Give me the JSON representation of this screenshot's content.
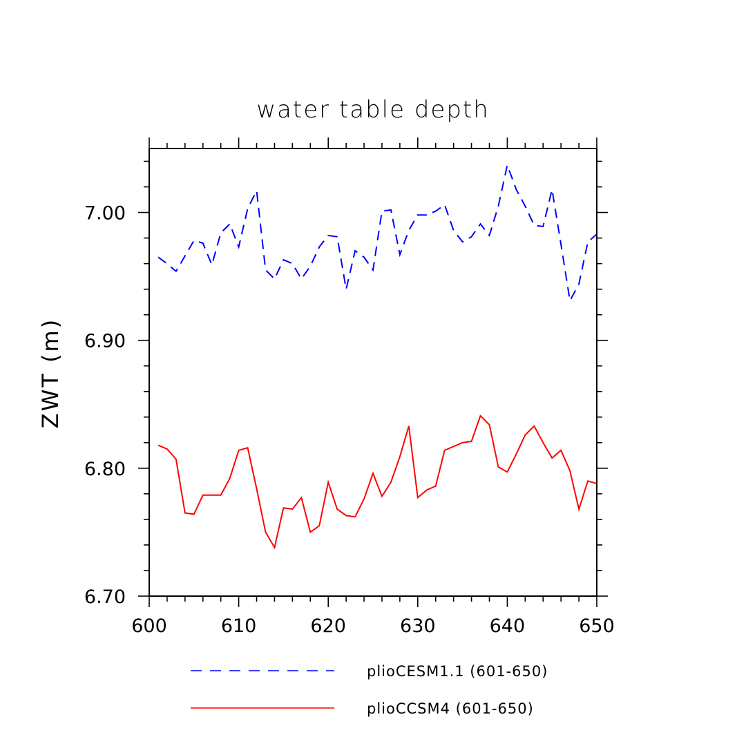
{
  "chart_data": {
    "type": "line",
    "title": "water table depth",
    "xlabel": "",
    "ylabel": "ZWT  (m)",
    "xlim": [
      600,
      650
    ],
    "ylim": [
      6.7,
      7.05
    ],
    "xticks": [
      "600",
      "610",
      "620",
      "630",
      "640",
      "650"
    ],
    "yticks": [
      "6.70",
      "6.80",
      "6.90",
      "7.00"
    ],
    "x": [
      601,
      602,
      603,
      604,
      605,
      606,
      607,
      608,
      609,
      610,
      611,
      612,
      613,
      614,
      615,
      616,
      617,
      618,
      619,
      620,
      621,
      622,
      623,
      624,
      625,
      626,
      627,
      628,
      629,
      630,
      631,
      632,
      633,
      634,
      635,
      636,
      637,
      638,
      639,
      640,
      641,
      642,
      643,
      644,
      645,
      646,
      647,
      648,
      649,
      650
    ],
    "series": [
      {
        "name": "plioCESM1.1 (601-650)",
        "color": "#0000ff",
        "style": "dashed",
        "values": [
          6.965,
          6.96,
          6.954,
          6.966,
          6.978,
          6.976,
          6.959,
          6.984,
          6.991,
          6.973,
          7.003,
          7.017,
          6.955,
          6.948,
          6.963,
          6.96,
          6.948,
          6.958,
          6.973,
          6.982,
          6.981,
          6.94,
          6.97,
          6.965,
          6.955,
          7.001,
          7.002,
          6.967,
          6.986,
          6.998,
          6.998,
          7.001,
          7.006,
          6.986,
          6.977,
          6.981,
          6.991,
          6.982,
          7.005,
          7.037,
          7.018,
          7.005,
          6.99,
          6.989,
          7.018,
          6.975,
          6.931,
          6.944,
          6.977,
          6.983
        ]
      },
      {
        "name": "plioCCSM4 (601-650)",
        "color": "#ff0000",
        "style": "solid",
        "values": [
          6.818,
          6.815,
          6.807,
          6.765,
          6.764,
          6.779,
          6.779,
          6.779,
          6.792,
          6.814,
          6.816,
          6.784,
          6.75,
          6.738,
          6.769,
          6.768,
          6.777,
          6.75,
          6.755,
          6.789,
          6.768,
          6.763,
          6.762,
          6.776,
          6.796,
          6.778,
          6.789,
          6.809,
          6.833,
          6.777,
          6.783,
          6.786,
          6.814,
          6.817,
          6.82,
          6.821,
          6.841,
          6.834,
          6.801,
          6.797,
          6.811,
          6.826,
          6.833,
          6.82,
          6.808,
          6.814,
          6.798,
          6.768,
          6.79,
          6.788
        ]
      }
    ],
    "legend_position": "bottom",
    "grid": false
  }
}
